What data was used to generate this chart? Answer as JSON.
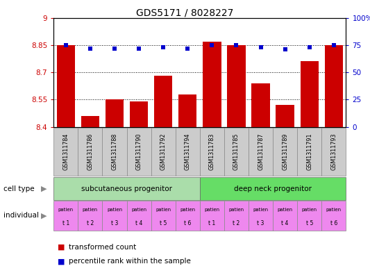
{
  "title": "GDS5171 / 8028227",
  "samples": [
    "GSM1311784",
    "GSM1311786",
    "GSM1311788",
    "GSM1311790",
    "GSM1311792",
    "GSM1311794",
    "GSM1311783",
    "GSM1311785",
    "GSM1311787",
    "GSM1311789",
    "GSM1311791",
    "GSM1311793"
  ],
  "bar_values": [
    8.85,
    8.46,
    8.55,
    8.54,
    8.68,
    8.58,
    8.87,
    8.85,
    8.64,
    8.52,
    8.76,
    8.85
  ],
  "percentile_values": [
    75,
    72,
    72,
    72,
    73,
    72,
    75,
    75,
    73,
    71,
    73,
    75
  ],
  "ylim_left": [
    8.4,
    9.0
  ],
  "ylim_right": [
    0,
    100
  ],
  "yticks_left": [
    8.4,
    8.55,
    8.7,
    8.85,
    9.0
  ],
  "ytick_labels_left": [
    "8.4",
    "8.55",
    "8.7",
    "8.85",
    "9"
  ],
  "yticks_right": [
    0,
    25,
    50,
    75,
    100
  ],
  "ytick_labels_right": [
    "0",
    "25",
    "50",
    "75",
    "100%"
  ],
  "hlines": [
    8.55,
    8.7,
    8.85
  ],
  "bar_color": "#cc0000",
  "dot_color": "#0000cc",
  "cell_type_labels": [
    "subcutaneous progenitor",
    "deep neck progenitor"
  ],
  "cell_type_colors": [
    "#aaddaa",
    "#66dd66"
  ],
  "cell_type_ranges": [
    [
      0,
      6
    ],
    [
      6,
      12
    ]
  ],
  "individual_labels": [
    "t 1",
    "t 2",
    "t 3",
    "t 4",
    "t 5",
    "t 6",
    "t 1",
    "t 2",
    "t 3",
    "t 4",
    "t 5",
    "t 6"
  ],
  "individual_color": "#ee88ee",
  "individual_label_top": "patien",
  "tick_label_color": "#333333",
  "left_ylabel_color": "#cc0000",
  "right_ylabel_color": "#0000cc",
  "legend_items": [
    "transformed count",
    "percentile rank within the sample"
  ],
  "legend_colors": [
    "#cc0000",
    "#0000cc"
  ],
  "xticklabel_bg": "#cccccc",
  "figure_width": 5.33,
  "figure_height": 3.93,
  "dpi": 100
}
